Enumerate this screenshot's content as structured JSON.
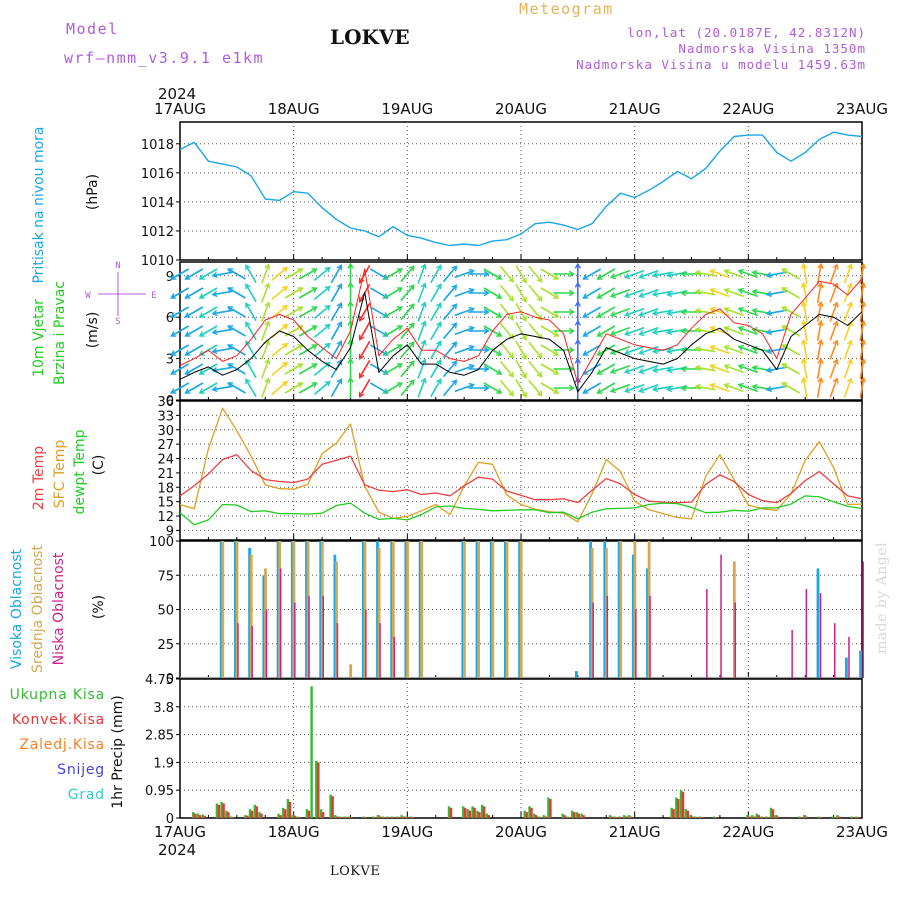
{
  "header": {
    "left_label": "Model",
    "model": "wrf–nmm_v3.9.1  e1km",
    "station": "LOKVE",
    "product": "Meteogram",
    "lonlat": "lon,lat (20.0187E, 42.8312N)",
    "elevation": "Nadmorska Visina 1350m",
    "model_elevation": "Nadmorska Visina u modelu 1459.63m"
  },
  "footer": {
    "station": "LOKVE",
    "watermark": "made by Angel"
  },
  "colors": {
    "pressure": "#1aa7e6",
    "wind_speed": "#000000",
    "wind_gust": "#ff2020",
    "temp_2m": "#ee4040",
    "temp_sfc": "#e0a020",
    "dewpoint": "#22cc22",
    "cloud_high": "#1aa7e6",
    "cloud_mid": "#d4a850",
    "cloud_low": "#cc2288",
    "precip_total": "#33bb33",
    "precip_conv": "#ee3333",
    "precip_frz": "#ff7f27",
    "precip_snow": "#4444dd",
    "precip_hail": "#33cccc"
  },
  "time_axis": {
    "year": "2024",
    "ticks": [
      "17AUG",
      "18AUG",
      "19AUG",
      "20AUG",
      "21AUG",
      "22AUG",
      "23AUG"
    ]
  },
  "chart_data": [
    {
      "type": "line",
      "ylabel_side": "Pritisak na nivou mora",
      "units": "(hPa)",
      "ylim": [
        1010,
        1019.5
      ],
      "yticks": [
        "1010",
        "1012",
        "1014",
        "1016",
        "1018"
      ],
      "x_hours": [
        0,
        3,
        6,
        9,
        12,
        15,
        18,
        21,
        24,
        27,
        30,
        33,
        36,
        39,
        42,
        45,
        48,
        51,
        54,
        57,
        60,
        63,
        66,
        69,
        72,
        75,
        78,
        81,
        84,
        87,
        90,
        93,
        96,
        99,
        102,
        105,
        108,
        111,
        114,
        117,
        120,
        123,
        126,
        129,
        132,
        135,
        138,
        141,
        144
      ],
      "series": [
        {
          "values": [
            1017.6,
            1018.1,
            1016.8,
            1016.6,
            1016.4,
            1015.8,
            1014.2,
            1014.1,
            1014.7,
            1014.6,
            1013.6,
            1012.8,
            1012.2,
            1012.0,
            1011.6,
            1012.3,
            1011.7,
            1011.5,
            1011.2,
            1011.0,
            1011.1,
            1011.0,
            1011.3,
            1011.4,
            1011.8,
            1012.5,
            1012.6,
            1012.4,
            1012.1,
            1012.5,
            1013.7,
            1014.6,
            1014.3,
            1014.8,
            1015.4,
            1016.1,
            1015.6,
            1016.3,
            1017.5,
            1018.5,
            1018.6,
            1018.6,
            1017.4,
            1016.8,
            1017.4,
            1018.3,
            1018.8,
            1018.6,
            1018.5
          ]
        }
      ]
    },
    {
      "type": "line",
      "ylabel_side": [
        "10m Vjetar",
        "Brzina i Pravac"
      ],
      "units": "(m/s)",
      "compass": {
        "n": "N",
        "s": "S",
        "e": "E",
        "w": "W"
      },
      "ylim": [
        0,
        10
      ],
      "yticks": [
        "0",
        "3",
        "6",
        "9"
      ],
      "x_hours": [
        0,
        3,
        6,
        9,
        12,
        15,
        18,
        21,
        24,
        27,
        30,
        33,
        36,
        39,
        42,
        45,
        48,
        51,
        54,
        57,
        60,
        63,
        66,
        69,
        72,
        75,
        78,
        81,
        84,
        87,
        90,
        93,
        96,
        99,
        102,
        105,
        108,
        111,
        114,
        117,
        120,
        123,
        126,
        129,
        132,
        135,
        138,
        141,
        144
      ],
      "series": [
        {
          "name": "speed",
          "values": [
            1.5,
            2.0,
            2.4,
            1.8,
            2.2,
            3.0,
            4.2,
            5.0,
            4.6,
            3.6,
            2.8,
            2.2,
            3.8,
            7.8,
            2.0,
            3.2,
            4.0,
            2.6,
            2.6,
            2.0,
            1.8,
            2.2,
            3.6,
            4.4,
            4.8,
            4.6,
            4.4,
            3.6,
            0.6,
            2.0,
            3.8,
            3.4,
            3.0,
            2.8,
            2.6,
            3.0,
            4.0,
            4.8,
            5.2,
            4.4,
            4.0,
            3.6,
            2.2,
            4.6,
            5.4,
            6.2,
            6.0,
            5.4,
            6.4
          ]
        },
        {
          "name": "gust",
          "values": [
            2.5,
            3.0,
            3.6,
            2.8,
            3.2,
            4.4,
            5.8,
            6.2,
            5.8,
            4.6,
            3.8,
            3.0,
            5.0,
            9.5,
            3.2,
            4.4,
            5.2,
            3.6,
            3.6,
            3.0,
            2.8,
            3.2,
            5.0,
            6.2,
            6.4,
            6.0,
            5.8,
            4.8,
            1.2,
            3.0,
            4.8,
            4.4,
            4.0,
            3.8,
            3.6,
            4.0,
            5.2,
            6.2,
            6.6,
            5.6,
            5.4,
            4.8,
            3.0,
            6.2,
            7.4,
            8.6,
            8.4,
            7.6,
            8.8
          ]
        }
      ],
      "direction_deg": [
        60,
        60,
        60,
        80,
        120,
        150,
        200,
        230,
        240,
        240,
        230,
        210,
        180,
        30,
        300,
        240,
        220,
        200,
        210,
        220,
        250,
        270,
        300,
        320,
        330,
        320,
        300,
        270,
        180,
        60,
        60,
        70,
        70,
        70,
        80,
        80,
        90,
        100,
        110,
        110,
        110,
        100,
        80,
        120,
        170,
        190,
        200,
        200,
        190
      ]
    },
    {
      "type": "line",
      "ylabel_side": [
        "2m Temp",
        "SFC Temp",
        "dewpt Temp"
      ],
      "units": "(C)",
      "ylim": [
        7,
        36
      ],
      "yticks": [
        "9",
        "12",
        "15",
        "18",
        "21",
        "24",
        "27",
        "30",
        "33",
        "36"
      ],
      "x_hours": [
        0,
        3,
        6,
        9,
        12,
        15,
        18,
        21,
        24,
        27,
        30,
        33,
        36,
        39,
        42,
        45,
        48,
        51,
        54,
        57,
        60,
        63,
        66,
        69,
        72,
        75,
        78,
        81,
        84,
        87,
        90,
        93,
        96,
        99,
        102,
        105,
        108,
        111,
        114,
        117,
        120,
        123,
        126,
        129,
        132,
        135,
        138,
        141,
        144
      ],
      "series": [
        {
          "name": "2m Temp",
          "values": [
            16.2,
            18.3,
            20.8,
            23.8,
            24.8,
            21.5,
            19.6,
            19.2,
            19.0,
            19.7,
            22.8,
            23.6,
            24.5,
            18.5,
            17.4,
            17.1,
            17.5,
            16.5,
            16.8,
            16.2,
            18.3,
            20.1,
            19.7,
            17.2,
            16.3,
            15.4,
            15.4,
            15.6,
            14.8,
            17.4,
            19.8,
            18.7,
            16.5,
            15.1,
            14.9,
            14.8,
            14.9,
            18.6,
            20.6,
            19.2,
            16.5,
            15.2,
            14.8,
            16.7,
            19.4,
            21.3,
            18.7,
            16.2,
            15.6
          ]
        },
        {
          "name": "SFC Temp",
          "values": [
            14.4,
            13.5,
            26.0,
            34.5,
            29.8,
            24.5,
            18.5,
            17.7,
            17.6,
            18.6,
            25.0,
            27.2,
            31.2,
            18.2,
            12.8,
            11.5,
            11.9,
            13.1,
            14.4,
            12.3,
            18.3,
            23.2,
            22.8,
            16.4,
            14.4,
            13.4,
            12.9,
            12.6,
            10.8,
            16.6,
            23.8,
            21.3,
            15.1,
            13.3,
            12.5,
            11.7,
            11.4,
            20.3,
            24.8,
            19.6,
            14.3,
            13.5,
            13.2,
            16.6,
            23.6,
            27.5,
            22.1,
            14.4,
            14.5
          ]
        },
        {
          "name": "dewpt Temp",
          "values": [
            12.7,
            10.2,
            11.2,
            14.4,
            14.3,
            12.9,
            13.1,
            12.5,
            12.5,
            12.4,
            12.6,
            14.2,
            14.7,
            12.6,
            11.3,
            11.5,
            11.2,
            12.3,
            13.9,
            14.1,
            13.6,
            13.4,
            13.1,
            13.2,
            13.3,
            13.3,
            12.7,
            12.8,
            11.4,
            12.8,
            13.5,
            13.6,
            13.7,
            14.4,
            14.7,
            14.6,
            13.8,
            12.7,
            12.8,
            13.2,
            13.0,
            13.7,
            13.7,
            14.5,
            16.2,
            16.0,
            15.0,
            14.0,
            13.6
          ]
        }
      ]
    },
    {
      "type": "bar",
      "ylabel_side": [
        "Visoka Oblacnost",
        "Srednja Oblacnost",
        "Niska Oblacnost"
      ],
      "units": "(%)",
      "ylim": [
        0,
        100
      ],
      "yticks": [
        "0",
        "25",
        "50",
        "75",
        "100"
      ],
      "x_hours": [
        0,
        3,
        6,
        9,
        12,
        15,
        18,
        21,
        24,
        27,
        30,
        33,
        36,
        39,
        42,
        45,
        48,
        51,
        54,
        57,
        60,
        63,
        66,
        69,
        72,
        75,
        78,
        81,
        84,
        87,
        90,
        93,
        96,
        99,
        102,
        105,
        108,
        111,
        114,
        117,
        120,
        123,
        126,
        129,
        132,
        135,
        138,
        141,
        144
      ],
      "series": [
        {
          "name": "Visoka Oblacnost",
          "values": [
            0,
            0,
            0,
            100,
            100,
            95,
            75,
            100,
            100,
            100,
            100,
            90,
            0,
            100,
            100,
            100,
            100,
            100,
            0,
            0,
            100,
            100,
            100,
            100,
            100,
            0,
            0,
            0,
            5,
            100,
            100,
            100,
            90,
            80,
            0,
            0,
            0,
            0,
            0,
            0,
            0,
            0,
            0,
            0,
            0,
            80,
            0,
            15,
            20
          ]
        },
        {
          "name": "Srednja Oblacnost",
          "values": [
            0,
            0,
            0,
            100,
            100,
            90,
            80,
            100,
            100,
            100,
            100,
            85,
            10,
            100,
            95,
            100,
            100,
            100,
            0,
            0,
            100,
            100,
            100,
            100,
            100,
            0,
            0,
            0,
            0,
            95,
            95,
            100,
            100,
            100,
            0,
            0,
            0,
            0,
            0,
            85,
            0,
            0,
            0,
            0,
            0,
            0,
            0,
            0,
            0
          ]
        },
        {
          "name": "Niska Oblacnost",
          "values": [
            0,
            0,
            0,
            0,
            40,
            38,
            50,
            80,
            55,
            60,
            60,
            40,
            0,
            50,
            40,
            30,
            0,
            0,
            0,
            0,
            0,
            0,
            0,
            0,
            0,
            0,
            0,
            0,
            0,
            55,
            60,
            0,
            50,
            60,
            0,
            0,
            0,
            65,
            90,
            55,
            0,
            0,
            0,
            35,
            65,
            62,
            40,
            30,
            85
          ]
        }
      ]
    },
    {
      "type": "bar",
      "ylabel_side": [
        "Ukupna Kisa",
        "Konvek.Kisa",
        "Zaledj.Kisa",
        "Snijeg",
        "Grad"
      ],
      "units": "1hr Precip (mm)",
      "ylim": [
        0,
        4.75
      ],
      "yticks": [
        "0",
        "0.95",
        "1.9",
        "2.85",
        "3.8",
        "4.75"
      ],
      "x_hours": [
        3,
        4,
        5,
        8,
        9,
        10,
        11,
        14,
        15,
        16,
        17,
        21,
        22,
        23,
        24,
        25,
        27,
        28,
        29,
        30,
        32,
        33,
        34,
        35,
        36,
        39,
        41,
        42,
        43,
        44,
        45,
        46,
        47,
        48,
        49,
        57,
        60,
        61,
        62,
        63,
        64,
        65,
        73,
        74,
        75,
        76,
        77,
        78,
        81,
        82,
        83,
        84,
        85,
        91,
        92,
        93,
        94,
        95,
        104,
        105,
        106,
        107,
        108,
        109,
        110,
        113,
        120,
        121,
        122,
        123,
        124,
        125,
        126,
        131,
        132,
        135,
        138,
        139,
        142,
        143
      ],
      "series": [
        {
          "name": "Ukupna Kisa",
          "values": [
            0.2,
            0.15,
            0.12,
            0.5,
            0.55,
            0.25,
            0.05,
            0.1,
            0.3,
            0.45,
            0.2,
            0.15,
            0.35,
            0.65,
            0.1,
            0.05,
            0.3,
            4.5,
            1.95,
            0.3,
            0.8,
            0.1,
            0.05,
            0.05,
            0.05,
            0.05,
            0.05,
            0.1,
            0.05,
            0.05,
            0.05,
            0.05,
            0.1,
            0.05,
            0.05,
            0.4,
            0.4,
            0.3,
            0.4,
            0.25,
            0.45,
            0.15,
            0.25,
            0.4,
            0.15,
            0.05,
            0.1,
            0.7,
            0.15,
            0.05,
            0.25,
            0.2,
            0.15,
            0.1,
            0.05,
            0.05,
            0.1,
            0.1,
            0.35,
            0.7,
            0.95,
            0.3,
            0.1,
            0.05,
            0.05,
            0.05,
            0.1,
            0.1,
            0.15,
            0.05,
            0.05,
            0.35,
            0.1,
            0.05,
            0.1,
            0.05,
            0.05,
            0.1,
            0.05,
            0.05
          ]
        },
        {
          "name": "Konvek.Kisa",
          "values": [
            0.15,
            0.1,
            0.08,
            0.45,
            0.5,
            0.2,
            0.03,
            0.08,
            0.25,
            0.4,
            0.15,
            0.1,
            0.3,
            0.55,
            0.08,
            0.03,
            0.25,
            0.0,
            1.9,
            0.2,
            0.75,
            0.05,
            0.03,
            0.03,
            0.03,
            0.03,
            0.03,
            0.05,
            0.03,
            0.03,
            0.03,
            0.03,
            0.05,
            0.03,
            0.03,
            0.35,
            0.35,
            0.25,
            0.35,
            0.2,
            0.4,
            0.1,
            0.2,
            0.35,
            0.1,
            0.03,
            0.05,
            0.65,
            0.1,
            0.03,
            0.2,
            0.15,
            0.1,
            0.05,
            0.03,
            0.03,
            0.05,
            0.05,
            0.3,
            0.65,
            0.9,
            0.25,
            0.05,
            0.03,
            0.03,
            0.03,
            0.05,
            0.05,
            0.1,
            0.03,
            0.03,
            0.3,
            0.05,
            0.03,
            0.05,
            0.03,
            0.03,
            0.05,
            0.03,
            0.03
          ]
        }
      ]
    }
  ]
}
